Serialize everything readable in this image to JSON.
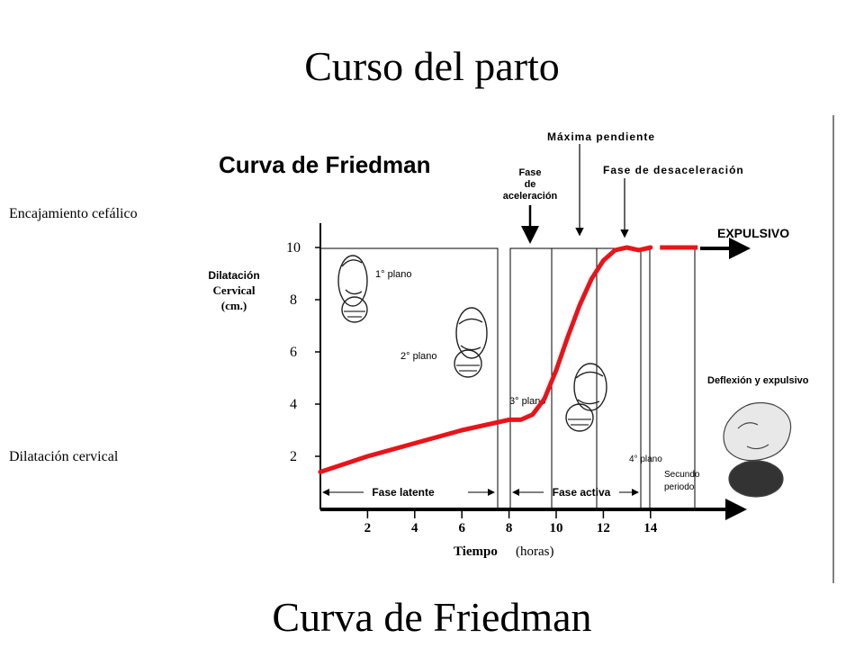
{
  "slide": {
    "title": "Curso del parto",
    "footer": "Curva de Friedman"
  },
  "side_labels": {
    "top": "Encajamiento cefálico",
    "bottom": "Dilatación cervical"
  },
  "figure": {
    "title": "Curva de Friedman",
    "y_label": [
      "Dilatación",
      "Cervical",
      "(cm.)"
    ],
    "x_label_bold": "Tiempo",
    "x_label_rest": "(horas)",
    "expulsivo": "EXPULSIVO",
    "annotations": {
      "maxima": "Máxima pendiente",
      "aceleracion": [
        "Fase",
        "de",
        "aceleración"
      ],
      "desaceleracion": "Fase de desaceleración"
    },
    "phases": {
      "latente": "Fase latente",
      "activa": "Fase activa"
    },
    "stations": {
      "p1": "1° plano",
      "p2": "2° plano",
      "p3": "3° plano",
      "p4": "4° plano"
    },
    "segundo": [
      "Secundo",
      "periodo"
    ],
    "deflexion": "Deflexión y expulsivo",
    "x_ticks": [
      "2",
      "4",
      "6",
      "8",
      "10",
      "12",
      "14"
    ],
    "y_ticks": [
      "10",
      "8",
      "6",
      "4",
      "2"
    ]
  },
  "chart_data": {
    "type": "line",
    "title": "Curva de Friedman",
    "xlabel": "Tiempo (horas)",
    "ylabel": "Dilatación Cervical (cm.)",
    "series": [
      {
        "x": [
          0,
          2,
          4,
          6,
          8,
          8.5,
          9,
          9.5,
          10,
          10.5,
          11,
          11.5,
          12,
          12.5,
          13,
          13.5,
          14
        ],
        "y": [
          1.4,
          2.0,
          2.5,
          3.0,
          3.4,
          3.4,
          3.6,
          4.2,
          5.3,
          6.6,
          7.8,
          8.8,
          9.5,
          9.9,
          10.0,
          9.9,
          10.0
        ]
      }
    ],
    "expulsivo_segment": {
      "x": [
        14.4,
        16
      ],
      "y": [
        10,
        10
      ]
    },
    "xlim": [
      0,
      16
    ],
    "ylim": [
      0,
      10
    ],
    "x_ticks": [
      2,
      4,
      6,
      8,
      10,
      12,
      14
    ],
    "y_ticks": [
      2,
      4,
      6,
      8,
      10
    ],
    "grid": false,
    "colors": {
      "curve": "#e8141a",
      "axes": "#000000"
    }
  }
}
